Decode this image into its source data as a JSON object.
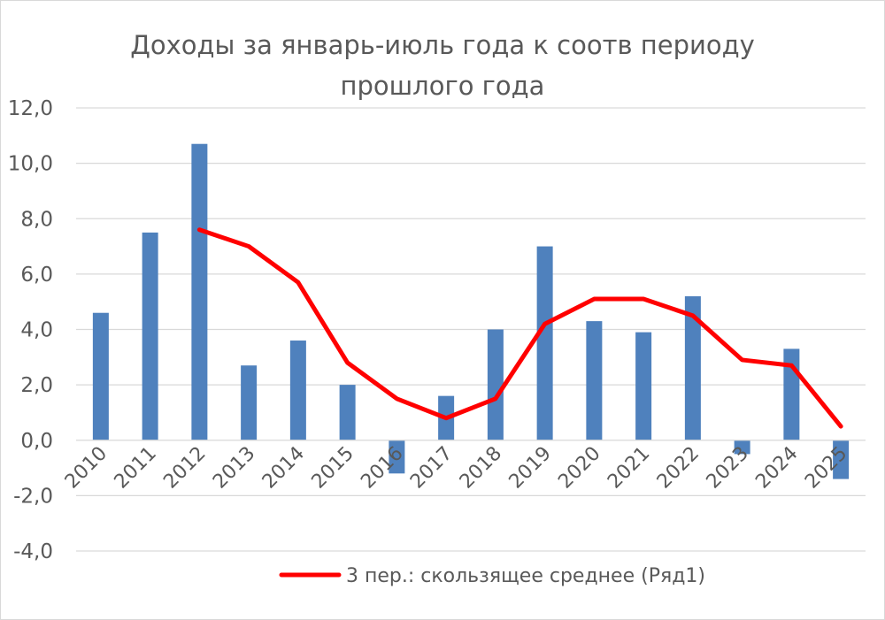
{
  "chart_data": {
    "type": "bar",
    "title_line1": "Доходы за январь-июль года к соотв периоду",
    "title_line2": "прошлого года",
    "categories": [
      "2010",
      "2011",
      "2012",
      "2013",
      "2014",
      "2015",
      "2016",
      "2017",
      "2018",
      "2019",
      "2020",
      "2021",
      "2022",
      "2023",
      "2024",
      "2025"
    ],
    "series": [
      {
        "kind": "bar",
        "values": [
          4.6,
          7.5,
          10.7,
          2.7,
          3.6,
          2.0,
          -1.2,
          1.6,
          4.0,
          7.0,
          4.3,
          3.9,
          5.2,
          -0.5,
          3.3,
          -1.4
        ],
        "color": "#4f81bd"
      },
      {
        "name": "3 пер.: скользящее среднее (Ряд1)",
        "kind": "line",
        "values": [
          null,
          null,
          7.6,
          7.0,
          5.7,
          2.8,
          1.5,
          0.8,
          1.5,
          4.2,
          5.1,
          5.1,
          4.5,
          2.9,
          2.7,
          0.5
        ],
        "color": "#ff0000"
      }
    ],
    "ylim": [
      -4.0,
      12.0
    ],
    "yticks": [
      "12,0",
      "10,0",
      "8,0",
      "6,0",
      "4,0",
      "2,0",
      "0,0",
      "-2,0",
      "-4,0"
    ],
    "ytick_values": [
      12,
      10,
      8,
      6,
      4,
      2,
      0,
      -2,
      -4
    ],
    "grid": true,
    "legend_position": "bottom"
  }
}
